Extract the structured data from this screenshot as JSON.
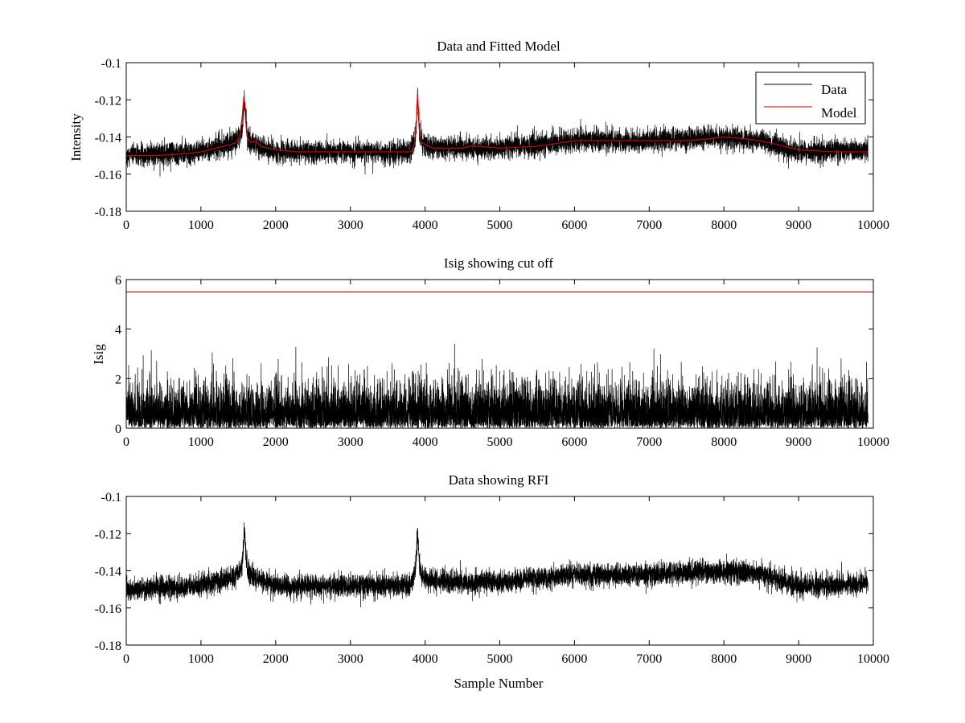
{
  "chart_data": [
    {
      "type": "line",
      "title": "Data and Fitted Model",
      "xlabel": "",
      "ylabel": "Intensity",
      "xlim": [
        0,
        10000
      ],
      "ylim": [
        -0.18,
        -0.1
      ],
      "xticks": [
        0,
        1000,
        2000,
        3000,
        4000,
        5000,
        6000,
        7000,
        8000,
        9000,
        10000
      ],
      "yticks": [
        -0.18,
        -0.16,
        -0.14,
        -0.12,
        -0.1
      ],
      "xtick_labels": [
        "0",
        "1000",
        "2000",
        "3000",
        "4000",
        "5000",
        "6000",
        "7000",
        "8000",
        "9000",
        "10000"
      ],
      "ytick_labels": [
        "-0.18",
        "-0.16",
        "-0.14",
        "-0.12",
        "-0.1"
      ],
      "legend": {
        "position": "top-right",
        "entries": [
          "Data",
          "Model"
        ]
      },
      "series": [
        {
          "name": "Data",
          "color": "#000000",
          "kind": "noisy",
          "n_points": 9930,
          "noise_std": 0.0035,
          "baseline": [
            [
              0,
              -0.15
            ],
            [
              800,
              -0.149
            ],
            [
              1200,
              -0.146
            ],
            [
              1450,
              -0.143
            ],
            [
              1550,
              -0.138
            ],
            [
              1580,
              -0.118
            ],
            [
              1620,
              -0.14
            ],
            [
              1700,
              -0.143
            ],
            [
              2000,
              -0.148
            ],
            [
              3000,
              -0.148
            ],
            [
              3800,
              -0.148
            ],
            [
              3870,
              -0.14
            ],
            [
              3900,
              -0.118
            ],
            [
              3930,
              -0.14
            ],
            [
              4000,
              -0.145
            ],
            [
              4500,
              -0.146
            ],
            [
              5000,
              -0.146
            ],
            [
              6000,
              -0.142
            ],
            [
              7000,
              -0.142
            ],
            [
              8000,
              -0.14
            ],
            [
              8500,
              -0.142
            ],
            [
              9000,
              -0.148
            ],
            [
              9930,
              -0.147
            ]
          ]
        },
        {
          "name": "Model",
          "color": "#d00000",
          "kind": "smooth",
          "points": [
            [
              0,
              -0.15
            ],
            [
              400,
              -0.15
            ],
            [
              800,
              -0.149
            ],
            [
              1000,
              -0.148
            ],
            [
              1200,
              -0.146
            ],
            [
              1300,
              -0.145
            ],
            [
              1400,
              -0.144
            ],
            [
              1470,
              -0.143
            ],
            [
              1520,
              -0.139
            ],
            [
              1550,
              -0.13
            ],
            [
              1575,
              -0.118
            ],
            [
              1600,
              -0.132
            ],
            [
              1630,
              -0.142
            ],
            [
              1680,
              -0.143
            ],
            [
              1720,
              -0.142
            ],
            [
              1800,
              -0.145
            ],
            [
              2000,
              -0.147
            ],
            [
              2300,
              -0.148
            ],
            [
              2600,
              -0.148
            ],
            [
              3000,
              -0.148
            ],
            [
              3400,
              -0.148
            ],
            [
              3800,
              -0.148
            ],
            [
              3850,
              -0.146
            ],
            [
              3880,
              -0.135
            ],
            [
              3900,
              -0.116
            ],
            [
              3920,
              -0.135
            ],
            [
              3950,
              -0.143
            ],
            [
              4000,
              -0.144
            ],
            [
              4100,
              -0.146
            ],
            [
              4300,
              -0.146
            ],
            [
              4500,
              -0.146
            ],
            [
              4600,
              -0.145
            ],
            [
              4700,
              -0.145
            ],
            [
              5000,
              -0.146
            ],
            [
              5500,
              -0.145
            ],
            [
              6000,
              -0.142
            ],
            [
              6500,
              -0.142
            ],
            [
              7000,
              -0.142
            ],
            [
              7500,
              -0.142
            ],
            [
              7800,
              -0.141
            ],
            [
              8000,
              -0.14
            ],
            [
              8300,
              -0.141
            ],
            [
              8600,
              -0.143
            ],
            [
              9000,
              -0.147
            ],
            [
              9500,
              -0.148
            ],
            [
              9930,
              -0.148
            ]
          ]
        }
      ]
    },
    {
      "type": "line",
      "title": "Isig showing cut off",
      "xlabel": "",
      "ylabel": "Isig",
      "xlim": [
        0,
        10000
      ],
      "ylim": [
        0,
        6
      ],
      "xticks": [
        0,
        1000,
        2000,
        3000,
        4000,
        5000,
        6000,
        7000,
        8000,
        9000,
        10000
      ],
      "yticks": [
        0,
        2,
        4,
        6
      ],
      "xtick_labels": [
        "0",
        "1000",
        "2000",
        "3000",
        "4000",
        "5000",
        "6000",
        "7000",
        "8000",
        "9000",
        "10000"
      ],
      "ytick_labels": [
        "0",
        "2",
        "4",
        "6"
      ],
      "series": [
        {
          "color": "#000000",
          "kind": "abs-noise",
          "n_points": 9930,
          "scale": 0.85,
          "max_value": 3.5
        },
        {
          "color": "#d00000",
          "kind": "constant",
          "value": 5.5,
          "x_range": [
            0,
            10000
          ]
        }
      ]
    },
    {
      "type": "line",
      "title": "Data showing RFI",
      "xlabel": "Sample Number",
      "ylabel": "",
      "xlim": [
        0,
        10000
      ],
      "ylim": [
        -0.18,
        -0.1
      ],
      "xticks": [
        0,
        1000,
        2000,
        3000,
        4000,
        5000,
        6000,
        7000,
        8000,
        9000,
        10000
      ],
      "yticks": [
        -0.18,
        -0.16,
        -0.14,
        -0.12,
        -0.1
      ],
      "xtick_labels": [
        "0",
        "1000",
        "2000",
        "3000",
        "4000",
        "5000",
        "6000",
        "7000",
        "8000",
        "9000",
        "10000"
      ],
      "ytick_labels": [
        "-0.18",
        "-0.16",
        "-0.14",
        "-0.12",
        "-0.1"
      ],
      "series": [
        {
          "color": "#000000",
          "kind": "noisy",
          "n_points": 9930,
          "noise_std": 0.0035,
          "baseline": [
            [
              0,
              -0.15
            ],
            [
              800,
              -0.149
            ],
            [
              1200,
              -0.146
            ],
            [
              1450,
              -0.143
            ],
            [
              1550,
              -0.138
            ],
            [
              1580,
              -0.118
            ],
            [
              1620,
              -0.14
            ],
            [
              1700,
              -0.143
            ],
            [
              2000,
              -0.148
            ],
            [
              3000,
              -0.148
            ],
            [
              3800,
              -0.148
            ],
            [
              3870,
              -0.14
            ],
            [
              3900,
              -0.118
            ],
            [
              3930,
              -0.14
            ],
            [
              4000,
              -0.145
            ],
            [
              4500,
              -0.146
            ],
            [
              5000,
              -0.146
            ],
            [
              6000,
              -0.142
            ],
            [
              7000,
              -0.142
            ],
            [
              8000,
              -0.14
            ],
            [
              8500,
              -0.142
            ],
            [
              9000,
              -0.148
            ],
            [
              9930,
              -0.147
            ]
          ]
        }
      ]
    }
  ]
}
